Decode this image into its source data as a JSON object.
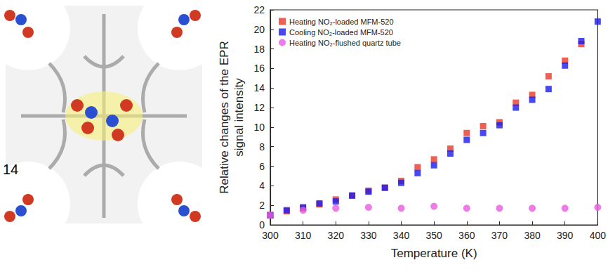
{
  "chart_data": {
    "type": "scatter",
    "annotations": [
      "14"
    ],
    "x_label": "Temperature (K)",
    "y_label": "Relative changes of the EPR signal intensity",
    "x": [
      300,
      305,
      310,
      315,
      320,
      325,
      330,
      335,
      340,
      345,
      350,
      355,
      360,
      365,
      370,
      375,
      380,
      385,
      390,
      395,
      400
    ],
    "series": [
      {
        "name": "Heating NO₂-loaded MFM-520",
        "color": "#e8392b",
        "marker": "square",
        "values": [
          1.0,
          1.4,
          1.7,
          2.1,
          2.6,
          3.0,
          3.5,
          3.8,
          4.5,
          5.9,
          6.7,
          7.8,
          9.4,
          10.1,
          10.5,
          12.5,
          13.3,
          15.2,
          16.8,
          18.5,
          null
        ]
      },
      {
        "name": "Cooling NO₂-loaded MFM-520",
        "color": "#1a1aee",
        "marker": "square",
        "values": [
          1.0,
          1.5,
          1.8,
          2.2,
          2.4,
          3.0,
          3.4,
          3.8,
          4.3,
          5.3,
          6.1,
          7.3,
          8.7,
          9.4,
          10.2,
          12.0,
          12.8,
          13.9,
          16.3,
          18.8,
          20.8
        ]
      },
      {
        "name": "Heating NO₂-flushed quartz tube",
        "color": "#e85ce0",
        "marker": "circle",
        "values": [
          1.0,
          null,
          1.5,
          null,
          1.7,
          null,
          1.8,
          null,
          1.7,
          null,
          1.9,
          null,
          1.7,
          null,
          1.7,
          null,
          1.7,
          null,
          1.7,
          null,
          1.8
        ]
      }
    ],
    "xlim": [
      300,
      400
    ],
    "xticks": [
      300,
      310,
      320,
      330,
      340,
      350,
      360,
      370,
      380,
      390,
      400
    ],
    "ylim": [
      0,
      22
    ],
    "yticks": [
      0,
      2,
      4,
      6,
      8,
      10,
      12,
      14,
      16,
      18,
      20,
      22
    ],
    "legend": "top-left",
    "grid": false
  }
}
